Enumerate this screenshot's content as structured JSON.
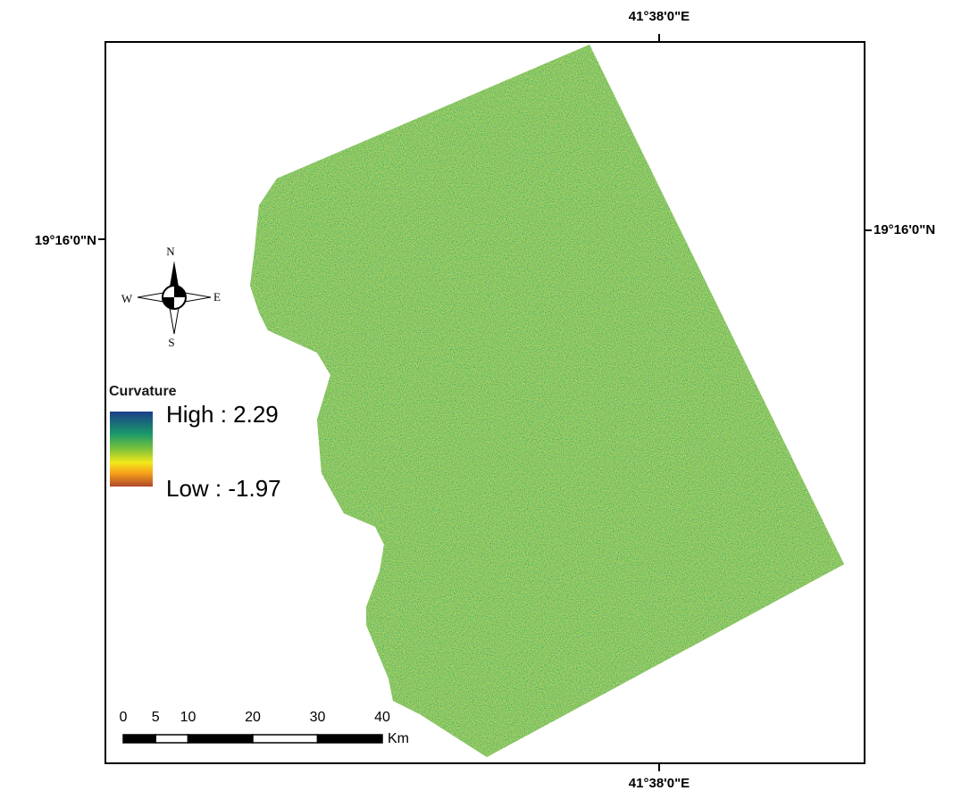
{
  "map": {
    "longitude_top": "41°38'0\"E",
    "longitude_bottom": "41°38'0\"E",
    "latitude_left": "19°16'0\"N",
    "latitude_right": "19°16'0\"N",
    "compass": {
      "north": "N",
      "south": "S",
      "east": "E",
      "west": "W"
    },
    "legend": {
      "title": "Curvature",
      "high": "High : 2.29",
      "low": "Low : -1.97"
    },
    "scale_bar": {
      "ticks": [
        0,
        5,
        10,
        20,
        30,
        40
      ],
      "unit": "Km"
    }
  }
}
